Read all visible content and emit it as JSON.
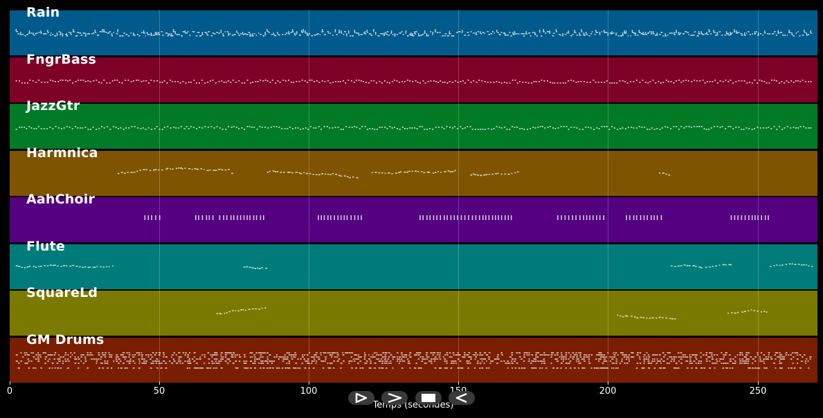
{
  "tracks": [
    {
      "name": "Rain",
      "color": "#005b8c",
      "pattern": "dense-multi",
      "segments": [
        [
          2,
          268
        ]
      ]
    },
    {
      "name": "FngrBass",
      "color": "#7d0026",
      "pattern": "dense-steady",
      "segments": [
        [
          2,
          268
        ]
      ]
    },
    {
      "name": "JazzGtr",
      "color": "#007a26",
      "pattern": "dense-steady",
      "segments": [
        [
          2,
          268
        ]
      ]
    },
    {
      "name": "Harmnica",
      "color": "#7f5400",
      "pattern": "melody",
      "segments": [
        [
          36,
          73
        ],
        [
          74,
          75
        ],
        [
          86,
          116
        ],
        [
          121,
          149
        ],
        [
          154,
          170
        ],
        [
          217,
          221
        ]
      ]
    },
    {
      "name": "AahChoir",
      "color": "#540080",
      "pattern": "chords",
      "segments": [
        [
          45,
          50
        ],
        [
          62,
          68
        ],
        [
          70,
          85
        ],
        [
          103,
          118
        ],
        [
          137,
          168
        ],
        [
          183,
          199
        ],
        [
          206,
          218
        ],
        [
          241,
          254
        ]
      ]
    },
    {
      "name": "Flute",
      "color": "#007b7b",
      "pattern": "melody",
      "segments": [
        [
          2,
          35
        ],
        [
          78,
          86
        ],
        [
          221,
          242
        ],
        [
          254,
          268
        ]
      ]
    },
    {
      "name": "SquareLd",
      "color": "#7b7a00",
      "pattern": "melody",
      "segments": [
        [
          69,
          86
        ],
        [
          203,
          222
        ],
        [
          240,
          253
        ]
      ]
    },
    {
      "name": "GM Drums",
      "color": "#7a1e00",
      "pattern": "drums",
      "segments": [
        [
          2,
          268
        ]
      ]
    }
  ],
  "axis": {
    "min": 0,
    "max": 270,
    "ticks": [
      0,
      50,
      100,
      150,
      200,
      250
    ],
    "tick_labels": [
      "0",
      "50",
      "100",
      "150",
      "200",
      "250"
    ],
    "xlabel": "Temps (secondes)"
  },
  "controls": [
    {
      "name": "play-icon"
    },
    {
      "name": "fast-forward-icon"
    },
    {
      "name": "stop-icon"
    },
    {
      "name": "rewind-icon"
    }
  ]
}
